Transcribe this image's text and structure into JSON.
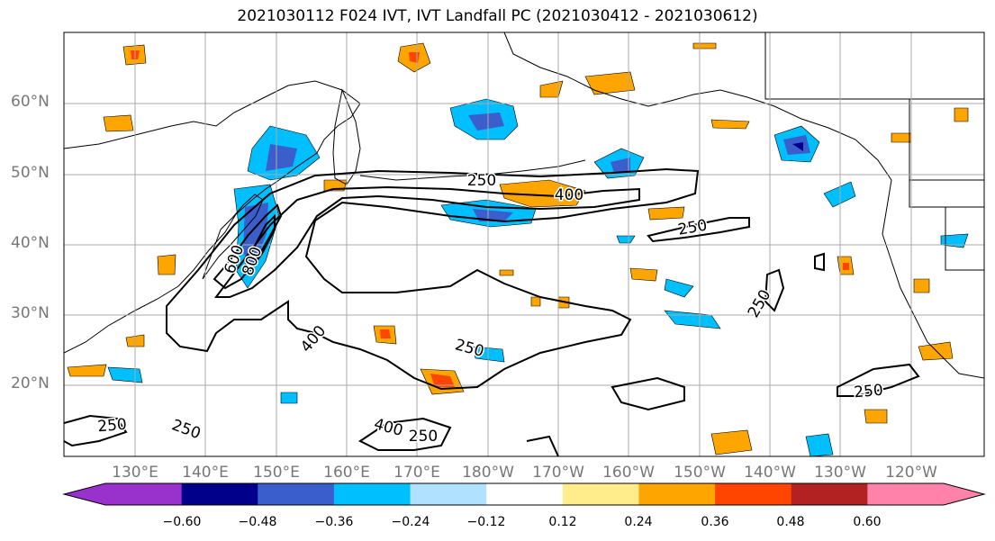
{
  "title": "2021030112 F024 IVT, IVT Landfall PC (2021030412 - 2021030612)",
  "lat_labels": [
    "60°N",
    "50°N",
    "40°N",
    "30°N",
    "20°N"
  ],
  "lon_labels": [
    "130°E",
    "140°E",
    "150°E",
    "160°E",
    "170°E",
    "180°W",
    "170°W",
    "160°W",
    "150°W",
    "140°W",
    "130°W",
    "120°W"
  ],
  "contour_labels": [
    "250",
    "400",
    "250",
    "600",
    "800",
    "250",
    "400",
    "250",
    "250",
    "250",
    "250",
    "400",
    "250"
  ],
  "colorbar": {
    "ticks": [
      "−0.60",
      "−0.48",
      "−0.36",
      "−0.24",
      "−0.12",
      "0.12",
      "0.24",
      "0.36",
      "0.48",
      "0.60"
    ],
    "colors": [
      "#9932cc",
      "#00008b",
      "#3a5fcd",
      "#00bfff",
      "#b0e2ff",
      "#ffffff",
      "#ffec8b",
      "#ffa500",
      "#ff4500",
      "#b22222",
      "#ff82ab"
    ]
  },
  "colors": {
    "land_outline": "#000000",
    "grid": "#a9a9a9",
    "contour": "#000000"
  }
}
